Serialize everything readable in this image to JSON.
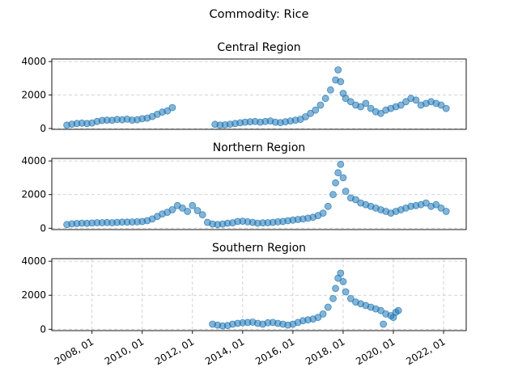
{
  "chart_data": {
    "type": "scatter",
    "title": "Commodity: Rice",
    "marker_color": "#1f77b4",
    "x_ticks": [
      "2008, 01",
      "2010, 01",
      "2012, 01",
      "2014, 01",
      "2016, 01",
      "2018, 01",
      "2020, 01",
      "2022, 01"
    ],
    "x_tick_years": [
      2008,
      2010,
      2012,
      2014,
      2016,
      2018,
      2020,
      2022
    ],
    "xlim": [
      2006.4,
      2022.9
    ],
    "grid": "dashed",
    "panels": [
      {
        "title": "Central Region",
        "ylim": [
          -50,
          4150
        ],
        "y_ticks": [
          0,
          2000,
          4000
        ],
        "x": [
          2007.0,
          2007.2,
          2007.4,
          2007.6,
          2007.8,
          2008.0,
          2008.2,
          2008.4,
          2008.6,
          2008.8,
          2009.0,
          2009.2,
          2009.4,
          2009.6,
          2009.8,
          2010.0,
          2010.2,
          2010.4,
          2010.6,
          2010.8,
          2011.0,
          2011.2,
          2012.9,
          2013.1,
          2013.3,
          2013.5,
          2013.7,
          2013.9,
          2014.1,
          2014.3,
          2014.5,
          2014.7,
          2014.9,
          2015.1,
          2015.3,
          2015.5,
          2015.7,
          2015.9,
          2016.1,
          2016.3,
          2016.5,
          2016.7,
          2016.9,
          2017.1,
          2017.3,
          2017.5,
          2017.7,
          2017.8,
          2017.9,
          2018.0,
          2018.1,
          2018.3,
          2018.5,
          2018.7,
          2018.9,
          2019.1,
          2019.3,
          2019.5,
          2019.7,
          2019.9,
          2020.1,
          2020.3,
          2020.5,
          2020.7,
          2020.9,
          2021.1,
          2021.3,
          2021.5,
          2021.7,
          2021.9,
          2022.1
        ],
        "y": [
          200,
          260,
          300,
          320,
          300,
          330,
          420,
          480,
          500,
          490,
          540,
          520,
          560,
          500,
          520,
          580,
          620,
          720,
          850,
          980,
          1050,
          1250,
          250,
          200,
          220,
          260,
          300,
          340,
          380,
          400,
          420,
          380,
          420,
          450,
          380,
          350,
          400,
          450,
          500,
          550,
          700,
          900,
          1100,
          1400,
          1800,
          2300,
          2900,
          3500,
          2800,
          2100,
          1800,
          1600,
          1400,
          1300,
          1500,
          1200,
          1000,
          900,
          1100,
          1200,
          1300,
          1400,
          1600,
          1800,
          1700,
          1400,
          1500,
          1600,
          1500,
          1400,
          1200
        ]
      },
      {
        "title": "Northern Region",
        "ylim": [
          -80,
          4150
        ],
        "y_ticks": [
          0,
          2000,
          4000
        ],
        "x": [
          2007.0,
          2007.2,
          2007.4,
          2007.6,
          2007.8,
          2008.0,
          2008.2,
          2008.4,
          2008.6,
          2008.8,
          2009.0,
          2009.2,
          2009.4,
          2009.6,
          2009.8,
          2010.0,
          2010.2,
          2010.4,
          2010.6,
          2010.8,
          2011.0,
          2011.2,
          2011.4,
          2011.6,
          2011.8,
          2012.0,
          2012.2,
          2012.4,
          2012.6,
          2012.8,
          2013.0,
          2013.2,
          2013.4,
          2013.6,
          2013.8,
          2014.0,
          2014.2,
          2014.4,
          2014.6,
          2014.8,
          2015.0,
          2015.2,
          2015.4,
          2015.6,
          2015.8,
          2016.0,
          2016.2,
          2016.4,
          2016.6,
          2016.8,
          2017.0,
          2017.2,
          2017.4,
          2017.6,
          2017.7,
          2017.8,
          2017.9,
          2018.0,
          2018.1,
          2018.3,
          2018.5,
          2018.7,
          2018.9,
          2019.1,
          2019.3,
          2019.5,
          2019.7,
          2019.9,
          2020.1,
          2020.3,
          2020.5,
          2020.7,
          2020.9,
          2021.1,
          2021.3,
          2021.5,
          2021.7,
          2021.9,
          2022.1
        ],
        "y": [
          220,
          260,
          280,
          300,
          290,
          310,
          330,
          330,
          340,
          330,
          350,
          360,
          360,
          370,
          380,
          400,
          450,
          550,
          700,
          850,
          950,
          1100,
          1350,
          1200,
          1000,
          1350,
          1050,
          800,
          350,
          250,
          220,
          250,
          300,
          320,
          400,
          420,
          380,
          350,
          300,
          320,
          330,
          350,
          380,
          400,
          450,
          480,
          520,
          550,
          600,
          650,
          750,
          900,
          1300,
          2000,
          2700,
          3300,
          3800,
          3000,
          2200,
          1800,
          1700,
          1500,
          1400,
          1300,
          1200,
          1100,
          1000,
          900,
          1000,
          1100,
          1200,
          1300,
          1350,
          1400,
          1500,
          1300,
          1400,
          1200,
          1000
        ]
      },
      {
        "title": "Southern Region",
        "ylim": [
          -80,
          4150
        ],
        "y_ticks": [
          0,
          2000,
          4000
        ],
        "x": [
          2012.8,
          2013.0,
          2013.2,
          2013.4,
          2013.6,
          2013.8,
          2014.0,
          2014.2,
          2014.4,
          2014.6,
          2014.8,
          2015.0,
          2015.2,
          2015.4,
          2015.6,
          2015.8,
          2016.0,
          2016.2,
          2016.4,
          2016.6,
          2016.8,
          2017.0,
          2017.2,
          2017.4,
          2017.6,
          2017.7,
          2017.8,
          2017.9,
          2018.0,
          2018.1,
          2018.3,
          2018.5,
          2018.7,
          2018.9,
          2019.1,
          2019.3,
          2019.5,
          2019.6,
          2019.7,
          2019.9,
          2020.0,
          2020.1,
          2020.2
        ],
        "y": [
          300,
          250,
          200,
          220,
          300,
          350,
          380,
          400,
          420,
          350,
          300,
          380,
          400,
          350,
          300,
          250,
          300,
          400,
          500,
          550,
          600,
          700,
          900,
          1300,
          1800,
          2400,
          3000,
          3300,
          2800,
          2200,
          1800,
          1600,
          1500,
          1400,
          1300,
          1200,
          1100,
          300,
          900,
          800,
          700,
          1000,
          1100
        ]
      }
    ]
  }
}
